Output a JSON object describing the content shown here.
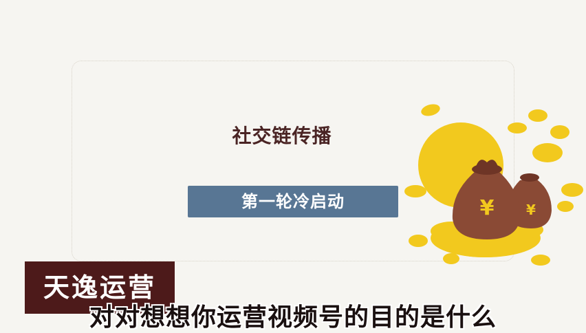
{
  "slide": {
    "title": "社交链传播",
    "button_label": "第一轮冷启动"
  },
  "illustration": {
    "icon": "money-bags-coins-icon",
    "currency_symbol": "¥",
    "colors": {
      "coin": "#f2c91e",
      "bag": "#8a4a35",
      "bag_dark": "#6e3526"
    }
  },
  "watermark": {
    "logo_text": "天逸运营"
  },
  "caption": {
    "subtitle": "对对想想你运营视频号的目的是什么"
  },
  "colors": {
    "background": "#f6f5f1",
    "title": "#4a2424",
    "button": "#587694",
    "logo_bg": "#4d1a1a"
  }
}
